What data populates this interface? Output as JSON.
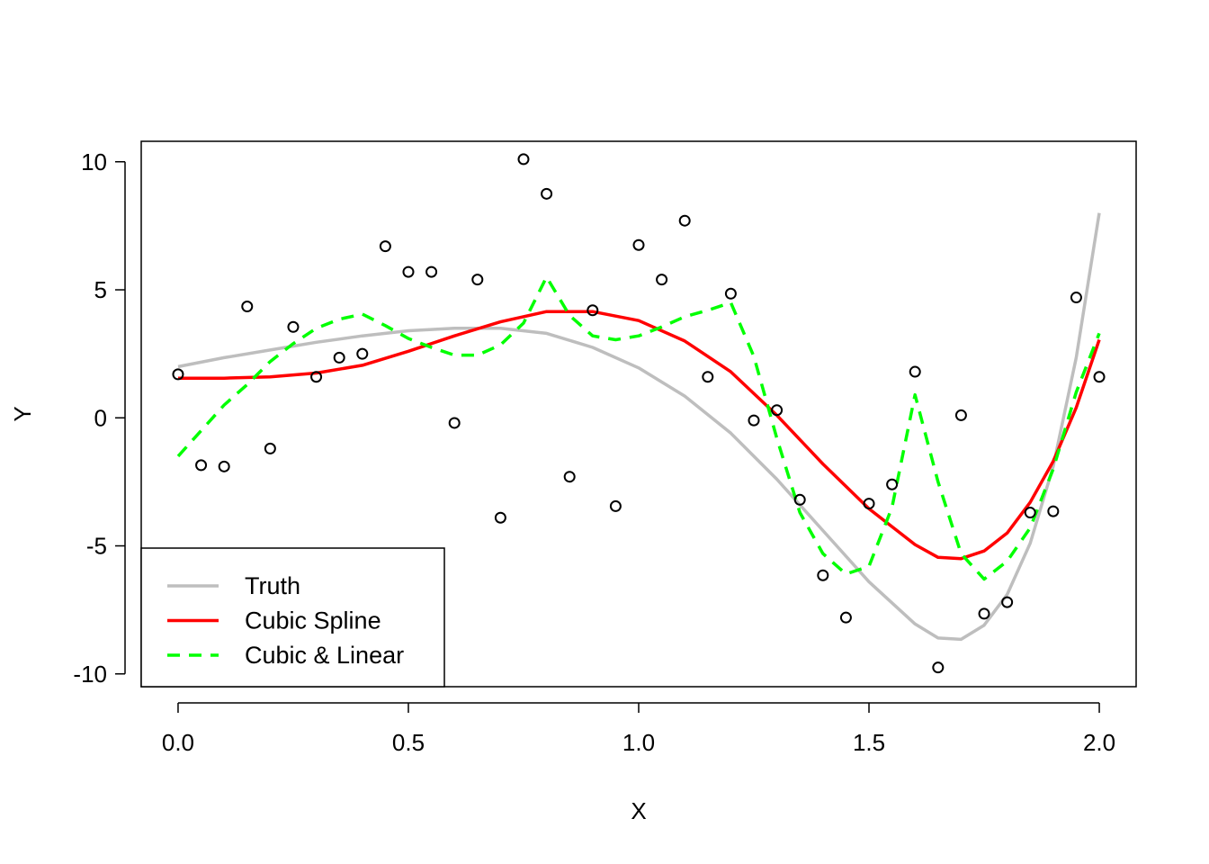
{
  "chart_data": {
    "type": "scatter",
    "title": "",
    "xlabel": "X",
    "ylabel": "Y",
    "xlim": [
      -0.08,
      2.08
    ],
    "ylim": [
      -10.5,
      10.8
    ],
    "xticks": [
      {
        "value": 0.0,
        "label": "0.0"
      },
      {
        "value": 0.5,
        "label": "0.5"
      },
      {
        "value": 1.0,
        "label": "1.0"
      },
      {
        "value": 1.5,
        "label": "1.5"
      },
      {
        "value": 2.0,
        "label": "2.0"
      }
    ],
    "yticks": [
      {
        "value": -10,
        "label": "-10"
      },
      {
        "value": -5,
        "label": "-5"
      },
      {
        "value": 0,
        "label": "0"
      },
      {
        "value": 5,
        "label": "5"
      },
      {
        "value": 10,
        "label": "10"
      }
    ],
    "grid": false,
    "legend_position": "bottom-left",
    "points": {
      "x": [
        0.0,
        0.05,
        0.1,
        0.15,
        0.2,
        0.25,
        0.3,
        0.35,
        0.4,
        0.45,
        0.5,
        0.55,
        0.6,
        0.65,
        0.7,
        0.75,
        0.8,
        0.85,
        0.9,
        0.95,
        1.0,
        1.05,
        1.1,
        1.15,
        1.2,
        1.25,
        1.3,
        1.35,
        1.4,
        1.45,
        1.5,
        1.55,
        1.6,
        1.65,
        1.7,
        1.75,
        1.8,
        1.85,
        1.9,
        1.95,
        2.0
      ],
      "y": [
        1.7,
        -1.85,
        -1.9,
        4.35,
        -1.2,
        3.55,
        1.6,
        2.35,
        2.5,
        6.7,
        5.7,
        5.7,
        -0.2,
        5.4,
        -3.9,
        10.1,
        8.75,
        -2.3,
        4.2,
        -3.45,
        6.75,
        5.4,
        7.7,
        1.6,
        4.85,
        -0.1,
        0.3,
        -3.2,
        -6.15,
        -7.8,
        -3.35,
        -2.6,
        1.8,
        -9.75,
        0.1,
        -7.65,
        -7.2,
        -3.7,
        -3.65,
        4.7,
        1.6
      ]
    },
    "series": [
      {
        "name": "Truth",
        "color": "#bebebe",
        "style": "solid",
        "x": [
          0.0,
          0.1,
          0.2,
          0.3,
          0.4,
          0.5,
          0.6,
          0.7,
          0.8,
          0.9,
          1.0,
          1.1,
          1.2,
          1.3,
          1.4,
          1.5,
          1.6,
          1.65,
          1.7,
          1.75,
          1.8,
          1.85,
          1.9,
          1.95,
          2.0
        ],
        "y": [
          2.0,
          2.35,
          2.65,
          2.95,
          3.2,
          3.4,
          3.5,
          3.5,
          3.3,
          2.75,
          1.95,
          0.85,
          -0.6,
          -2.4,
          -4.4,
          -6.4,
          -8.05,
          -8.6,
          -8.65,
          -8.1,
          -6.9,
          -4.9,
          -1.9,
          2.35,
          8.0
        ]
      },
      {
        "name": "Cubic Spline",
        "color": "#ff0000",
        "style": "solid",
        "x": [
          0.0,
          0.1,
          0.2,
          0.3,
          0.4,
          0.5,
          0.6,
          0.7,
          0.8,
          0.9,
          1.0,
          1.1,
          1.2,
          1.3,
          1.4,
          1.5,
          1.6,
          1.65,
          1.7,
          1.75,
          1.8,
          1.85,
          1.9,
          1.95,
          2.0
        ],
        "y": [
          1.55,
          1.55,
          1.6,
          1.75,
          2.05,
          2.6,
          3.2,
          3.75,
          4.15,
          4.15,
          3.8,
          3.0,
          1.8,
          0.1,
          -1.8,
          -3.55,
          -4.95,
          -5.45,
          -5.5,
          -5.2,
          -4.5,
          -3.3,
          -1.7,
          0.4,
          3.05
        ]
      },
      {
        "name": "Cubic & Linear",
        "color": "#00ff00",
        "style": "dashed",
        "x": [
          0.0,
          0.05,
          0.1,
          0.15,
          0.2,
          0.25,
          0.3,
          0.35,
          0.4,
          0.45,
          0.5,
          0.55,
          0.6,
          0.65,
          0.7,
          0.75,
          0.8,
          0.85,
          0.9,
          0.95,
          1.0,
          1.05,
          1.1,
          1.15,
          1.2,
          1.25,
          1.3,
          1.35,
          1.4,
          1.45,
          1.5,
          1.55,
          1.6,
          1.65,
          1.7,
          1.75,
          1.8,
          1.85,
          1.9,
          1.95,
          2.0
        ],
        "y": [
          -1.5,
          -0.5,
          0.5,
          1.3,
          2.2,
          2.9,
          3.5,
          3.85,
          4.05,
          3.6,
          3.1,
          2.75,
          2.45,
          2.45,
          2.85,
          3.7,
          5.5,
          4.0,
          3.2,
          3.05,
          3.2,
          3.55,
          3.95,
          4.2,
          4.5,
          2.4,
          -0.8,
          -3.7,
          -5.3,
          -6.1,
          -5.8,
          -3.5,
          0.9,
          -2.5,
          -5.3,
          -6.3,
          -5.6,
          -4.3,
          -2.0,
          1.0,
          3.3
        ]
      }
    ]
  }
}
